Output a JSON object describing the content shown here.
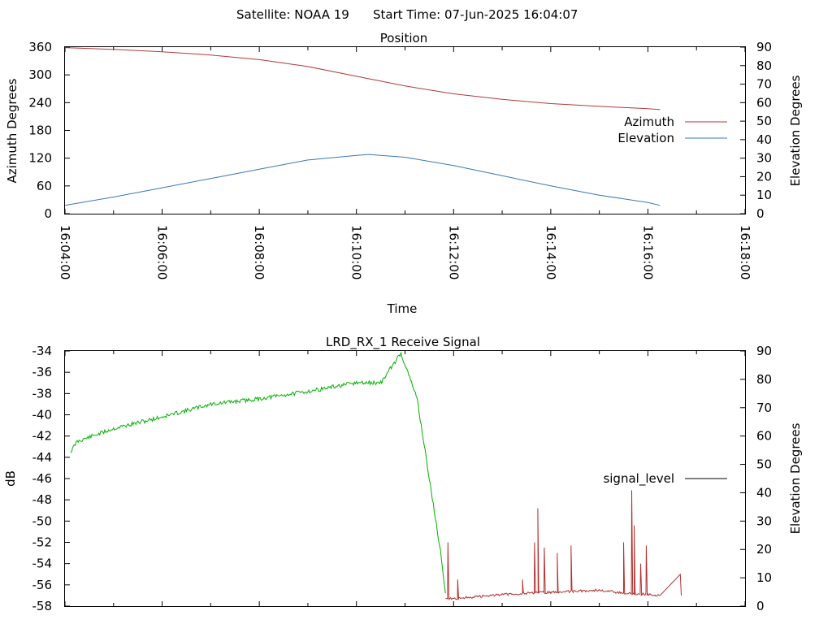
{
  "header": {
    "satellite_label": "Satellite: NOAA 19",
    "start_time_label": "Start Time: 07-Jun-2025 16:04:07"
  },
  "chart_data": [
    {
      "type": "line",
      "title": "Position",
      "xlabel": "Time",
      "ylabel": "Azimuth Degrees",
      "y2label": "Elevation Degrees",
      "x_ticks": [
        "16:04:00",
        "16:06:00",
        "16:08:00",
        "16:10:00",
        "16:12:00",
        "16:14:00",
        "16:16:00",
        "16:18:00"
      ],
      "xlim": [
        "16:04:00",
        "16:18:00"
      ],
      "ylim": [
        0,
        360
      ],
      "y_ticks": [
        "0",
        "60",
        "120",
        "180",
        "240",
        "300",
        "360"
      ],
      "y2lim": [
        0,
        90
      ],
      "y2_ticks": [
        "0",
        "10",
        "20",
        "30",
        "40",
        "50",
        "60",
        "70",
        "80",
        "90"
      ],
      "grid": false,
      "legend": "right",
      "series": [
        {
          "name": "Azimuth",
          "axis": "y",
          "color": "#b03a3a",
          "x": [
            "16:04:00",
            "16:05:00",
            "16:06:00",
            "16:07:00",
            "16:08:00",
            "16:09:00",
            "16:10:00",
            "16:11:00",
            "16:12:00",
            "16:13:00",
            "16:14:00",
            "16:15:00",
            "16:16:00",
            "16:16:15"
          ],
          "values": [
            359,
            355,
            350,
            343,
            333,
            318,
            297,
            276,
            259,
            247,
            238,
            232,
            227,
            225
          ]
        },
        {
          "name": "Elevation",
          "axis": "y2",
          "color": "#3a78b5",
          "x": [
            "16:04:00",
            "16:05:00",
            "16:06:00",
            "16:07:00",
            "16:08:00",
            "16:09:00",
            "16:10:00",
            "16:10:15",
            "16:11:00",
            "16:12:00",
            "16:13:00",
            "16:14:00",
            "16:15:00",
            "16:16:00",
            "16:16:15"
          ],
          "values": [
            4.5,
            9,
            14,
            19,
            24,
            29,
            31.5,
            32,
            30.5,
            26,
            20.5,
            15,
            10,
            6,
            4.5
          ]
        }
      ]
    },
    {
      "type": "line",
      "title": "LRD_RX_1 Receive Signal",
      "xlabel": "",
      "ylabel": "dB",
      "y2label": "Elevation Degrees",
      "xlim": [
        "16:04:00",
        "16:18:00"
      ],
      "ylim": [
        -58,
        -34
      ],
      "y_ticks": [
        "-58",
        "-56",
        "-54",
        "-52",
        "-50",
        "-48",
        "-46",
        "-44",
        "-42",
        "-40",
        "-38",
        "-36",
        "-34"
      ],
      "y2lim": [
        0,
        90
      ],
      "y2_ticks": [
        "0",
        "10",
        "20",
        "30",
        "40",
        "50",
        "60",
        "70",
        "80",
        "90"
      ],
      "grid": false,
      "legend": "right",
      "legend_entries": [
        "signal_level"
      ],
      "series": [
        {
          "name": "signal_level",
          "segment": "locked",
          "color": "#00b000",
          "x": [
            "16:04:07",
            "16:04:15",
            "16:05:00",
            "16:06:00",
            "16:07:00",
            "16:08:00",
            "16:09:00",
            "16:10:00",
            "16:10:30",
            "16:10:55",
            "16:11:15",
            "16:11:30",
            "16:11:45",
            "16:11:50"
          ],
          "values": [
            -43.5,
            -42.5,
            -41.3,
            -40.2,
            -39.0,
            -38.5,
            -37.8,
            -37.0,
            -37.0,
            -34.2,
            -38.5,
            -46.0,
            -53.5,
            -56.8
          ]
        },
        {
          "name": "signal_level",
          "segment": "lost",
          "color": "#b03030",
          "x": [
            "16:11:50",
            "16:12:00",
            "16:12:30",
            "16:13:00",
            "16:13:30",
            "16:14:00",
            "16:14:30",
            "16:15:00",
            "16:15:30",
            "16:16:00",
            "16:16:15"
          ],
          "values": [
            -57.2,
            -57.3,
            -57.1,
            -56.9,
            -56.8,
            -56.7,
            -56.6,
            -56.5,
            -56.8,
            -56.9,
            -57.0
          ],
          "spikes": [
            {
              "x": "16:11:53",
              "value": -52.0
            },
            {
              "x": "16:12:05",
              "value": -55.5
            },
            {
              "x": "16:13:25",
              "value": -55.5
            },
            {
              "x": "16:13:40",
              "value": -52.0
            },
            {
              "x": "16:13:44",
              "value": -48.8
            },
            {
              "x": "16:13:52",
              "value": -52.5
            },
            {
              "x": "16:14:08",
              "value": -53.0
            },
            {
              "x": "16:14:25",
              "value": -52.3
            },
            {
              "x": "16:15:30",
              "value": -52.0
            },
            {
              "x": "16:15:40",
              "value": -47.1
            },
            {
              "x": "16:15:43",
              "value": -50.4
            },
            {
              "x": "16:15:51",
              "value": -54.0
            },
            {
              "x": "16:15:58",
              "value": -52.3
            },
            {
              "x": "16:16:40",
              "value": -55.0
            }
          ]
        }
      ]
    }
  ]
}
